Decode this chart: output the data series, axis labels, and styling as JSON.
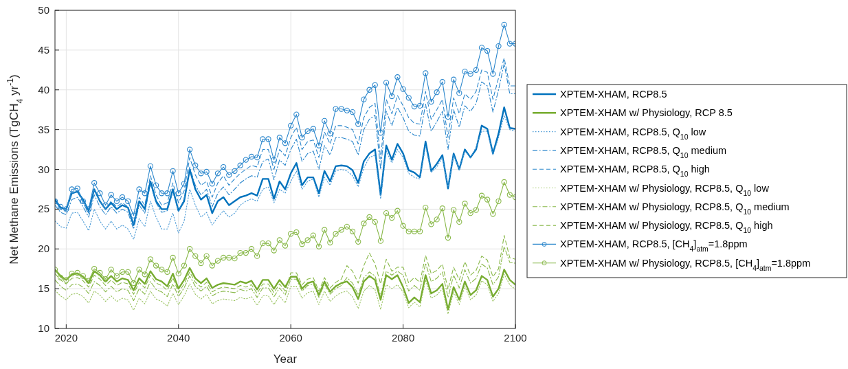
{
  "chart_data": {
    "type": "line",
    "xlabel": "Year",
    "ylabel": "Net Methane Emissions (TgCH$_{4}$ yr$^{-1}$)",
    "x": [
      2018,
      2019,
      2020,
      2021,
      2022,
      2023,
      2024,
      2025,
      2026,
      2027,
      2028,
      2029,
      2030,
      2031,
      2032,
      2033,
      2034,
      2035,
      2036,
      2037,
      2038,
      2039,
      2040,
      2041,
      2042,
      2043,
      2044,
      2045,
      2046,
      2047,
      2048,
      2049,
      2050,
      2051,
      2052,
      2053,
      2054,
      2055,
      2056,
      2057,
      2058,
      2059,
      2060,
      2061,
      2062,
      2063,
      2064,
      2065,
      2066,
      2067,
      2068,
      2069,
      2070,
      2071,
      2072,
      2073,
      2074,
      2075,
      2076,
      2077,
      2078,
      2079,
      2080,
      2081,
      2082,
      2083,
      2084,
      2085,
      2086,
      2087,
      2088,
      2089,
      2090,
      2091,
      2092,
      2093,
      2094,
      2095,
      2096,
      2097,
      2098,
      2099,
      2100
    ],
    "xlim": [
      2018,
      2100
    ],
    "xticks": [
      2020,
      2040,
      2060,
      2080,
      2100
    ],
    "ylim": [
      10,
      50
    ],
    "yticks": [
      10,
      15,
      20,
      25,
      30,
      35,
      40,
      45,
      50
    ],
    "grid": true,
    "legend": "right",
    "series": [
      {
        "name": "XPTEM-XHAM, RCP8.5",
        "color": "#0072bd",
        "line_style": "solid",
        "marker": "none",
        "values": [
          26.2,
          25.2,
          25.0,
          27.0,
          27.2,
          26.2,
          24.8,
          27.5,
          26.0,
          25.0,
          25.8,
          25.0,
          25.5,
          25.2,
          23.0,
          26.0,
          25.0,
          28.5,
          26.0,
          25.0,
          25.0,
          27.5,
          24.8,
          26.0,
          30.0,
          27.5,
          26.2,
          26.8,
          24.5,
          26.0,
          26.5,
          25.5,
          26.0,
          26.5,
          26.7,
          27.0,
          26.7,
          28.8,
          28.8,
          26.3,
          28.5,
          27.5,
          29.5,
          30.8,
          28.0,
          29.0,
          29.0,
          27.0,
          29.8,
          28.5,
          30.4,
          30.5,
          30.4,
          29.9,
          28.3,
          31.0,
          32.0,
          32.5,
          26.8,
          33.0,
          31.2,
          33.2,
          32.0,
          29.9,
          29.6,
          29.0,
          33.5,
          29.8,
          30.7,
          31.8,
          27.6,
          32.0,
          30.0,
          32.5,
          31.5,
          32.5,
          35.5,
          35.1,
          32.0,
          34.5,
          37.8,
          35.2,
          35.1
        ]
      },
      {
        "name": "XPTEM-XHAM w/ Physiology, RCP 8.5",
        "color": "#77ac30",
        "line_style": "solid",
        "marker": "none",
        "values": [
          17.4,
          16.6,
          16.1,
          16.8,
          16.9,
          16.5,
          15.7,
          17.2,
          16.7,
          15.9,
          16.6,
          15.9,
          16.3,
          16.1,
          14.8,
          16.3,
          15.6,
          17.2,
          16.2,
          15.9,
          15.3,
          16.9,
          15.0,
          16.1,
          17.6,
          16.3,
          15.7,
          16.3,
          15.1,
          15.5,
          15.7,
          15.6,
          15.5,
          15.9,
          15.7,
          16.0,
          14.9,
          16.1,
          16.1,
          15.0,
          16.1,
          15.2,
          16.5,
          16.5,
          15.0,
          15.7,
          15.9,
          14.2,
          15.9,
          14.6,
          15.3,
          15.7,
          15.9,
          15.2,
          13.7,
          15.9,
          16.6,
          16.1,
          13.6,
          16.7,
          16.2,
          16.7,
          15.2,
          13.2,
          13.9,
          13.3,
          16.7,
          14.4,
          14.8,
          15.6,
          12.4,
          15.2,
          13.6,
          15.9,
          14.2,
          14.8,
          16.6,
          16.1,
          14.0,
          15.0,
          17.4,
          16.1,
          15.5
        ]
      },
      {
        "name": "XPTEM-XHAM, RCP8.5, Q$_{10}$ low",
        "color": "#4a9ad6",
        "line_style": "dotted",
        "marker": "none",
        "values": [
          23.5,
          22.8,
          22.6,
          24.5,
          24.6,
          23.5,
          22.3,
          25.0,
          23.5,
          22.5,
          23.5,
          22.5,
          23.0,
          22.5,
          21.2,
          23.8,
          22.8,
          26.0,
          24.0,
          22.5,
          22.5,
          24.5,
          22.0,
          23.5,
          27.5,
          25.5,
          24.0,
          24.6,
          23.0,
          24.0,
          24.8,
          24.0,
          24.5,
          25.5,
          26.0,
          26.3,
          26.0,
          27.5,
          27.8,
          25.8,
          27.5,
          27.0,
          28.5,
          29.8,
          27.5,
          28.5,
          28.8,
          26.5,
          29.0,
          28.0,
          29.8,
          30.0,
          29.8,
          29.2,
          27.8,
          30.2,
          31.5,
          31.8,
          26.3,
          32.3,
          30.8,
          32.5,
          31.5,
          29.5,
          29.0,
          28.8,
          33.0,
          29.6,
          30.3,
          31.5,
          27.8,
          31.8,
          30.0,
          32.3,
          31.5,
          32.8,
          34.8,
          34.8,
          31.8,
          34.0,
          36.8,
          35.0,
          34.8
        ]
      },
      {
        "name": "XPTEM-XHAM, RCP8.5, Q$_{10}$ medium",
        "color": "#2a86cc",
        "line_style": "dashdot",
        "marker": "none",
        "values": [
          25.5,
          24.6,
          24.3,
          26.2,
          26.5,
          25.3,
          24.0,
          26.8,
          25.3,
          24.3,
          25.3,
          24.5,
          25.0,
          24.6,
          22.5,
          25.5,
          24.5,
          28.2,
          25.8,
          24.6,
          24.8,
          27.2,
          24.7,
          26.3,
          30.3,
          28.0,
          26.8,
          27.5,
          25.3,
          27.0,
          27.8,
          26.8,
          27.5,
          28.3,
          28.8,
          29.2,
          29.0,
          31.0,
          31.3,
          28.7,
          31.2,
          30.5,
          32.5,
          33.8,
          31.0,
          32.0,
          32.3,
          30.0,
          33.0,
          31.8,
          34.0,
          34.0,
          33.8,
          33.5,
          31.8,
          35.0,
          36.3,
          36.8,
          30.0,
          37.3,
          35.5,
          37.8,
          36.5,
          34.8,
          34.3,
          34.2,
          38.2,
          34.8,
          36.0,
          37.3,
          32.5,
          37.5,
          35.3,
          38.0,
          37.3,
          38.3,
          41.0,
          40.5,
          37.2,
          40.0,
          43.3,
          39.5,
          39.5
        ]
      },
      {
        "name": "XPTEM-XHAM, RCP8.5, Q$_{10}$ high",
        "color": "#2a86cc",
        "line_style": "dashed",
        "marker": "none",
        "values": [
          26.0,
          25.0,
          24.8,
          27.0,
          27.2,
          25.8,
          24.5,
          27.5,
          26.0,
          25.0,
          26.0,
          25.3,
          25.8,
          25.3,
          23.2,
          26.5,
          25.5,
          29.2,
          26.8,
          25.5,
          25.8,
          28.3,
          25.8,
          27.3,
          31.5,
          29.3,
          28.0,
          28.5,
          26.5,
          28.3,
          29.2,
          28.0,
          28.8,
          29.5,
          30.0,
          30.5,
          30.3,
          32.5,
          32.5,
          30.0,
          32.5,
          31.7,
          34.0,
          35.3,
          32.5,
          33.5,
          33.7,
          31.5,
          34.7,
          33.2,
          35.5,
          35.5,
          35.3,
          35.0,
          33.2,
          36.5,
          37.8,
          38.3,
          31.3,
          38.8,
          37.0,
          39.3,
          38.0,
          36.5,
          35.8,
          35.7,
          39.8,
          36.3,
          37.5,
          38.8,
          34.0,
          39.0,
          37.0,
          39.5,
          38.8,
          39.8,
          42.5,
          42.2,
          38.8,
          41.5,
          44.0,
          40.5,
          40.5
        ]
      },
      {
        "name": "XPTEM-XHAM w/ Physiology, RCP8.5, Q$_{10}$ low",
        "color": "#9cc463",
        "line_style": "dotted",
        "marker": "none",
        "values": [
          14.8,
          14.1,
          13.6,
          14.3,
          14.4,
          14.0,
          13.2,
          14.7,
          14.2,
          13.4,
          14.1,
          13.4,
          13.8,
          13.6,
          12.3,
          13.8,
          13.1,
          14.7,
          13.7,
          13.4,
          12.8,
          14.4,
          13.0,
          14.1,
          15.6,
          14.3,
          13.7,
          14.3,
          13.1,
          13.5,
          13.7,
          13.6,
          13.5,
          13.9,
          13.7,
          14.0,
          12.9,
          14.1,
          14.1,
          13.0,
          14.1,
          13.2,
          15.3,
          15.3,
          13.8,
          14.5,
          14.7,
          13.0,
          14.7,
          13.4,
          14.1,
          14.5,
          14.7,
          14.0,
          12.5,
          14.7,
          15.4,
          14.9,
          12.4,
          15.5,
          15.0,
          15.5,
          14.6,
          12.6,
          13.3,
          12.7,
          16.1,
          13.8,
          14.2,
          15.0,
          11.8,
          14.6,
          13.0,
          15.3,
          13.6,
          14.2,
          16.0,
          15.5,
          13.4,
          14.4,
          16.8,
          15.5,
          14.9
        ]
      },
      {
        "name": "XPTEM-XHAM w/ Physiology, RCP8.5, Q$_{10}$ medium",
        "color": "#88b848",
        "line_style": "dashdot",
        "marker": "none",
        "values": [
          16.1,
          15.3,
          14.8,
          15.5,
          15.6,
          15.2,
          14.4,
          15.9,
          15.4,
          14.6,
          15.3,
          14.6,
          15.0,
          14.8,
          13.5,
          15.0,
          14.3,
          15.9,
          14.9,
          14.6,
          14.0,
          15.6,
          14.0,
          15.1,
          16.6,
          15.3,
          14.7,
          15.3,
          14.1,
          14.5,
          14.7,
          14.6,
          14.5,
          14.9,
          14.7,
          15.0,
          13.9,
          15.1,
          15.1,
          14.0,
          15.1,
          14.2,
          16.2,
          16.2,
          14.7,
          15.4,
          15.6,
          13.9,
          15.6,
          14.3,
          15.0,
          15.4,
          16.4,
          15.7,
          14.2,
          16.4,
          17.1,
          16.6,
          14.1,
          17.2,
          16.7,
          17.2,
          16.7,
          14.7,
          15.4,
          14.8,
          18.2,
          15.9,
          16.3,
          17.1,
          13.9,
          16.7,
          15.1,
          17.4,
          15.7,
          16.3,
          18.1,
          17.6,
          15.5,
          16.5,
          20.3,
          18.3,
          18.2
        ]
      },
      {
        "name": "XPTEM-XHAM w/ Physiology, RCP8.5, Q$_{10}$ high",
        "color": "#88b848",
        "line_style": "dashed",
        "marker": "none",
        "values": [
          16.9,
          16.1,
          15.6,
          16.3,
          16.4,
          16.0,
          15.2,
          16.7,
          16.2,
          15.4,
          16.1,
          15.4,
          15.8,
          15.6,
          14.3,
          15.8,
          15.1,
          16.7,
          15.7,
          15.4,
          14.8,
          16.4,
          14.5,
          15.6,
          17.1,
          15.8,
          15.2,
          15.8,
          14.6,
          15.0,
          15.2,
          15.1,
          15.0,
          15.4,
          15.2,
          15.5,
          14.4,
          15.6,
          15.6,
          14.5,
          15.6,
          14.7,
          17.0,
          17.0,
          15.5,
          16.2,
          16.4,
          14.7,
          16.4,
          15.1,
          15.8,
          16.2,
          17.9,
          17.2,
          15.7,
          17.9,
          19.5,
          18.1,
          15.6,
          18.7,
          17.2,
          17.7,
          17.7,
          15.7,
          16.4,
          15.8,
          19.2,
          16.9,
          17.3,
          18.1,
          14.9,
          17.7,
          16.1,
          18.4,
          16.7,
          17.3,
          19.1,
          18.6,
          16.5,
          17.5,
          21.7,
          18.9,
          18.7
        ]
      },
      {
        "name": "XPTEM-XHAM, RCP8.5, [CH$_{4}$]$_{atm}$=1.8ppm",
        "color": "#2a86cc",
        "line_style": "solid",
        "marker": "circle",
        "values": [
          26.0,
          25.3,
          25.0,
          27.5,
          27.6,
          26.0,
          25.0,
          28.3,
          27.0,
          25.5,
          26.8,
          26.0,
          26.5,
          26.0,
          24.2,
          27.5,
          27.0,
          30.4,
          28.0,
          27.0,
          27.0,
          29.8,
          27.0,
          28.2,
          32.5,
          30.5,
          29.5,
          29.7,
          28.2,
          29.5,
          30.3,
          29.3,
          29.8,
          30.5,
          31.2,
          31.6,
          31.5,
          33.8,
          33.8,
          31.2,
          34.0,
          33.3,
          35.5,
          36.9,
          34.0,
          34.8,
          35.1,
          33.0,
          36.1,
          34.5,
          37.6,
          37.6,
          37.4,
          37.2,
          35.7,
          38.8,
          40.0,
          40.6,
          34.6,
          40.9,
          39.2,
          41.6,
          40.1,
          39.0,
          37.9,
          38.0,
          42.1,
          38.5,
          39.7,
          41.0,
          36.6,
          41.3,
          39.6,
          42.3,
          42.0,
          42.5,
          45.3,
          44.9,
          42.0,
          45.5,
          48.2,
          45.8,
          45.8
        ]
      },
      {
        "name": "XPTEM-XHAM w/ Physiology, RCP8.5, [CH$_{4}$]$_{atm}$=1.8ppm",
        "color": "#88b848",
        "line_style": "solid",
        "marker": "circle",
        "values": [
          17.4,
          16.4,
          16.1,
          16.9,
          17.0,
          16.6,
          16.0,
          17.5,
          17.0,
          16.2,
          17.4,
          16.6,
          17.1,
          17.1,
          15.7,
          17.4,
          16.8,
          18.7,
          17.9,
          17.4,
          17.1,
          18.9,
          16.9,
          17.9,
          20.0,
          19.1,
          18.2,
          19.1,
          17.9,
          18.5,
          18.9,
          18.9,
          18.8,
          19.5,
          19.5,
          20.0,
          19.1,
          20.7,
          20.7,
          19.8,
          21.1,
          20.4,
          21.9,
          22.1,
          20.6,
          21.1,
          21.7,
          20.3,
          22.4,
          20.8,
          21.9,
          22.4,
          22.8,
          22.2,
          20.9,
          23.2,
          24.0,
          23.4,
          21.0,
          24.5,
          23.9,
          24.8,
          22.9,
          22.2,
          22.2,
          22.2,
          25.2,
          23.1,
          23.7,
          25.1,
          21.4,
          24.9,
          23.4,
          25.7,
          24.5,
          24.9,
          26.7,
          26.2,
          24.4,
          26.0,
          28.4,
          26.8,
          26.5
        ]
      }
    ]
  }
}
